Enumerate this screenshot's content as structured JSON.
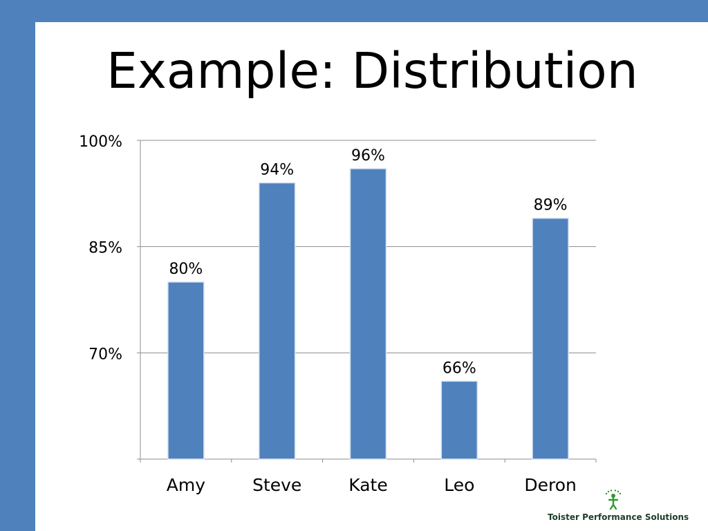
{
  "slide": {
    "title": "Example: Distribution"
  },
  "colors": {
    "accent": "#4f81bd",
    "bar": "#4f81bd",
    "logo_green": "#2e9a2e"
  },
  "chart_data": {
    "type": "bar",
    "categories": [
      "Amy",
      "Steve",
      "Kate",
      "Leo",
      "Deron"
    ],
    "values": [
      80,
      94,
      96,
      66,
      89
    ],
    "data_labels": [
      "80%",
      "94%",
      "96%",
      "66%",
      "89%"
    ],
    "y_ticks": [
      {
        "value": 70,
        "label": "70%"
      },
      {
        "value": 85,
        "label": "85%"
      },
      {
        "value": 100,
        "label": "100%"
      }
    ],
    "ylim": [
      55,
      100
    ],
    "grid": true,
    "legend": "none"
  },
  "logo": {
    "text": "Toister Performance Solutions",
    "icon": "person-figure-icon"
  }
}
